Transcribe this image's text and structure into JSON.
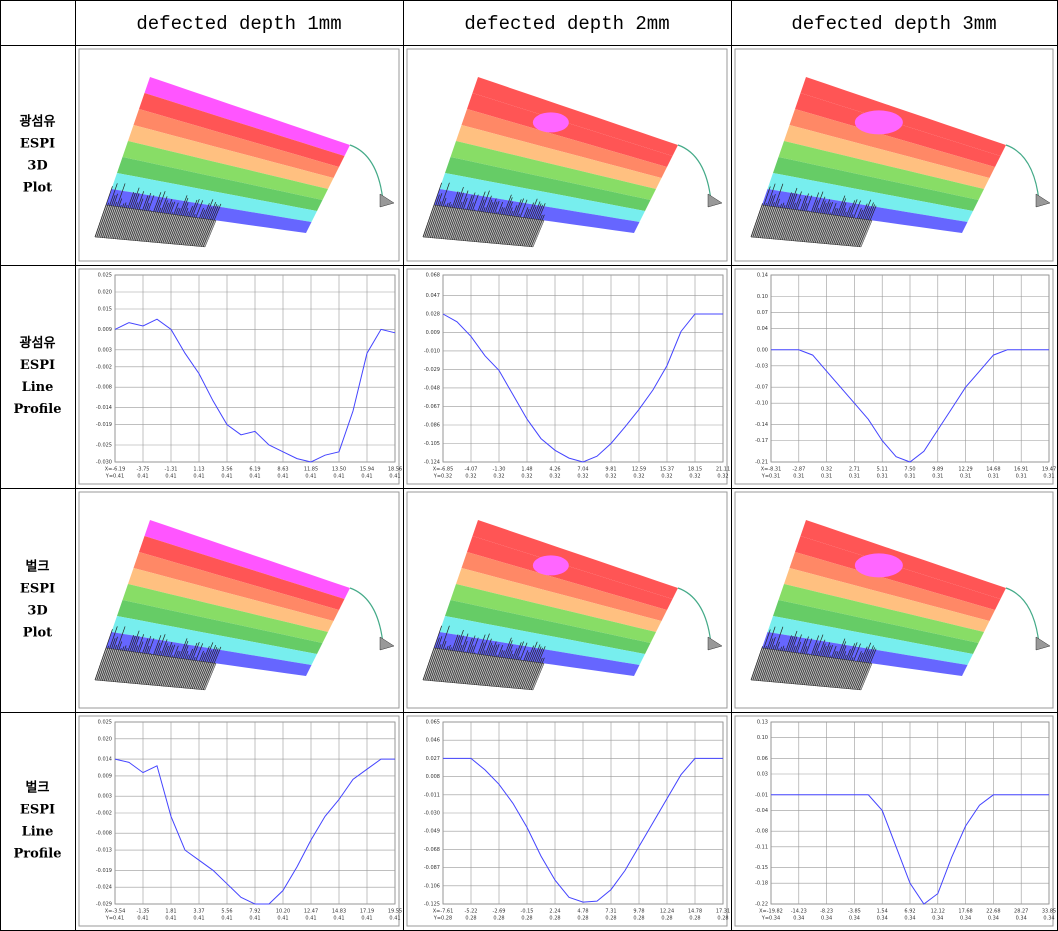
{
  "table": {
    "headers": [
      "defected depth 1mm",
      "defected depth 2mm",
      "defected depth 3mm"
    ],
    "rows": [
      {
        "label": [
          "광섬유",
          "ESPI",
          "3D",
          "Plot"
        ]
      },
      {
        "label": [
          "광섬유",
          "ESPI",
          "Line",
          "Profile"
        ],
        "profiles": [
          {
            "ylim": [
              -0.03,
              0.025
            ],
            "color": "#4444ff",
            "yticks": [
              0.025,
              {
                "value": 0.02,
                "label": "0.020"
              },
              0.015,
              0.009,
              0.003,
              -0.002,
              -0.008,
              -0.014,
              -0.019,
              -0.025,
              {
                "value": -0.03,
                "label": "-0.030"
              }
            ],
            "xlabels": [
              "X=-6.19",
              "-3.75",
              "-1.31",
              "1.13",
              "3.56",
              "6.19",
              "8.63",
              "11.85",
              "13.50",
              "15.94",
              "18.56"
            ],
            "ylabels": [
              "Y=0.41",
              "0.41",
              "0.41",
              "0.41",
              "0.41",
              "0.41",
              "0.41",
              "0.41",
              "0.41",
              "0.41",
              "0.41"
            ],
            "values": [
              0.009,
              0.011,
              0.01,
              0.012,
              0.009,
              0.002,
              -0.004,
              -0.012,
              -0.019,
              -0.022,
              -0.021,
              -0.025,
              -0.027,
              -0.029,
              -0.03,
              -0.028,
              -0.027,
              -0.015,
              0.002,
              0.009,
              0.008
            ]
          },
          {
            "ylim": [
              -0.124,
              0.068
            ],
            "color": "#4444ff",
            "yticks": [
              0.068,
              0.047,
              0.028,
              0.009,
              {
                "value": -0.01,
                "label": "-0.010"
              },
              -0.029,
              -0.048,
              -0.067,
              -0.086,
              -0.105,
              -0.124
            ],
            "xlabels": [
              "X=-6.85",
              "-4.07",
              "-1.30",
              "1.48",
              "4.26",
              "7.04",
              "9.81",
              "12.59",
              "15.37",
              "18.15",
              "21.11"
            ],
            "ylabels": [
              "Y=0.32",
              "0.32",
              "0.32",
              "0.32",
              "0.32",
              "0.32",
              "0.32",
              "0.32",
              "0.32",
              "0.32",
              "0.32"
            ],
            "values": [
              0.028,
              0.02,
              0.005,
              -0.015,
              -0.03,
              -0.055,
              -0.08,
              -0.1,
              -0.112,
              -0.12,
              -0.124,
              -0.118,
              -0.105,
              -0.088,
              -0.07,
              -0.05,
              -0.025,
              0.01,
              0.028,
              0.028,
              0.028
            ]
          },
          {
            "ylim": [
              -0.21,
              0.14
            ],
            "color": "#4444ff",
            "yticks": [
              0.14,
              {
                "value": 0.1,
                "label": "0.10"
              },
              0.07,
              0.04,
              {
                "value": 0.0,
                "label": "0.00"
              },
              -0.03,
              -0.07,
              {
                "value": -0.1,
                "label": "-0.10"
              },
              -0.14,
              -0.17,
              -0.21
            ],
            "xlabels": [
              "X=-8.31",
              "-2.87",
              "0.32",
              "2.71",
              "5.11",
              "7.50",
              "9.89",
              "12.29",
              "14.68",
              "16.91",
              "19.47"
            ],
            "ylabels": [
              "Y=0.31",
              "0.31",
              "0.31",
              "0.31",
              "0.31",
              "0.31",
              "0.31",
              "0.31",
              "0.31",
              "0.31",
              "0.31"
            ],
            "values": [
              0.0,
              0.0,
              0.0,
              -0.01,
              -0.04,
              -0.07,
              -0.1,
              -0.13,
              -0.17,
              -0.2,
              -0.21,
              -0.19,
              -0.15,
              -0.11,
              -0.07,
              -0.04,
              -0.01,
              0.0,
              0.0,
              0.0,
              0.0
            ]
          }
        ]
      },
      {
        "label": [
          "벌크",
          "ESPI",
          "3D",
          "Plot"
        ]
      },
      {
        "label": [
          "벌크",
          "ESPI",
          "Line",
          "Profile"
        ],
        "profiles": [
          {
            "ylim": [
              -0.029,
              0.025
            ],
            "color": "#4444ff",
            "yticks": [
              0.025,
              {
                "value": 0.02,
                "label": "0.020"
              },
              0.014,
              0.009,
              0.003,
              -0.002,
              -0.008,
              -0.013,
              -0.019,
              -0.024,
              -0.029
            ],
            "xlabels": [
              "X=-3.54",
              "-1.35",
              "1.81",
              "3.37",
              "5.56",
              "7.92",
              "10.20",
              "12.47",
              "14.83",
              "17.19",
              "19.55"
            ],
            "ylabels": [
              "Y=0.41",
              "0.41",
              "0.41",
              "0.41",
              "0.41",
              "0.41",
              "0.41",
              "0.41",
              "0.41",
              "0.41",
              "0.41"
            ],
            "values": [
              0.014,
              0.013,
              0.01,
              0.012,
              -0.003,
              -0.013,
              -0.016,
              -0.019,
              -0.023,
              -0.027,
              -0.029,
              -0.029,
              -0.025,
              -0.018,
              -0.01,
              -0.003,
              0.002,
              0.008,
              0.011,
              0.014,
              0.014
            ]
          },
          {
            "ylim": [
              -0.125,
              0.065
            ],
            "color": "#4444ff",
            "yticks": [
              0.065,
              0.046,
              0.027,
              0.008,
              -0.011,
              {
                "value": -0.03,
                "label": "-0.030"
              },
              -0.049,
              -0.068,
              -0.087,
              -0.106,
              -0.125
            ],
            "xlabels": [
              "X=-7.61",
              "-5.22",
              "-2.69",
              "-0.15",
              "2.24",
              "4.78",
              "7.31",
              "9.78",
              "12.24",
              "14.78",
              "17.31"
            ],
            "ylabels": [
              "Y=0.28",
              "0.28",
              "0.28",
              "0.28",
              "0.28",
              "0.28",
              "0.28",
              "0.28",
              "0.28",
              "0.28",
              "0.28"
            ],
            "values": [
              0.027,
              0.027,
              0.027,
              0.015,
              0.0,
              -0.02,
              -0.045,
              -0.075,
              -0.1,
              -0.118,
              -0.123,
              -0.122,
              -0.11,
              -0.09,
              -0.065,
              -0.04,
              -0.015,
              0.01,
              0.027,
              0.027,
              0.027
            ]
          },
          {
            "ylim": [
              -0.22,
              0.13
            ],
            "color": "#4444ff",
            "yticks": [
              0.13,
              {
                "value": 0.1,
                "label": "0.10"
              },
              0.06,
              0.03,
              -0.01,
              -0.04,
              -0.08,
              -0.11,
              -0.15,
              -0.18,
              -0.22
            ],
            "xlabels": [
              "X=-19.82",
              "-14.23",
              "-8.23",
              "-3.85",
              "1.54",
              "6.92",
              "12.12",
              "17.68",
              "22.68",
              "28.27",
              "33.85"
            ],
            "ylabels": [
              "Y=0.34",
              "0.34",
              "0.34",
              "0.34",
              "0.34",
              "0.34",
              "0.34",
              "0.34",
              "0.34",
              "0.34",
              "0.34"
            ],
            "values": [
              -0.01,
              -0.01,
              -0.01,
              -0.01,
              -0.01,
              -0.01,
              -0.01,
              -0.01,
              -0.04,
              -0.11,
              -0.18,
              -0.22,
              -0.2,
              -0.13,
              -0.07,
              -0.03,
              -0.01,
              -0.01,
              -0.01,
              -0.01,
              -0.01
            ]
          }
        ]
      }
    ]
  }
}
